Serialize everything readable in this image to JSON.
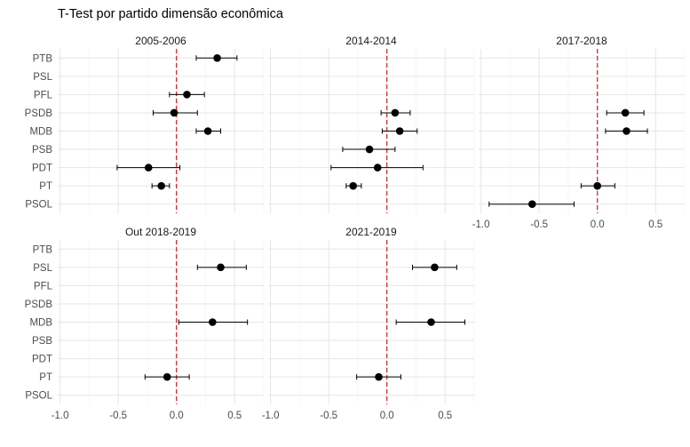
{
  "chart_data": {
    "type": "scatter",
    "title": "T-Test por partido dimensão econômica",
    "parties": [
      "PTB",
      "PSL",
      "PFL",
      "PSDB",
      "MDB",
      "PSB",
      "PDT",
      "PT",
      "PSOL"
    ],
    "x_ticks": [
      -1.0,
      -0.5,
      0.0,
      0.5
    ],
    "x_tick_labels": [
      "-1.0",
      "-0.5",
      "0.0",
      "0.5"
    ],
    "xlim": [
      -1.02,
      0.75
    ],
    "reference_line_x": 0,
    "reference_line_color": "#d7191c",
    "point_color": "#000000",
    "grid": true,
    "panels": [
      {
        "title": "2005-2006",
        "points": [
          {
            "party": "PTB",
            "estimate": 0.35,
            "lower": 0.17,
            "upper": 0.52
          },
          {
            "party": "PFL",
            "estimate": 0.09,
            "lower": -0.06,
            "upper": 0.24
          },
          {
            "party": "PSDB",
            "estimate": -0.02,
            "lower": -0.2,
            "upper": 0.18
          },
          {
            "party": "MDB",
            "estimate": 0.27,
            "lower": 0.17,
            "upper": 0.38
          },
          {
            "party": "PDT",
            "estimate": -0.24,
            "lower": -0.51,
            "upper": 0.03
          },
          {
            "party": "PT",
            "estimate": -0.13,
            "lower": -0.21,
            "upper": -0.06
          }
        ]
      },
      {
        "title": "2014-2014",
        "points": [
          {
            "party": "PSDB",
            "estimate": 0.07,
            "lower": -0.05,
            "upper": 0.2
          },
          {
            "party": "MDB",
            "estimate": 0.11,
            "lower": -0.04,
            "upper": 0.26
          },
          {
            "party": "PSB",
            "estimate": -0.15,
            "lower": -0.38,
            "upper": 0.07
          },
          {
            "party": "PDT",
            "estimate": -0.08,
            "lower": -0.48,
            "upper": 0.31
          },
          {
            "party": "PT",
            "estimate": -0.29,
            "lower": -0.35,
            "upper": -0.22
          }
        ]
      },
      {
        "title": "2017-2018",
        "points": [
          {
            "party": "PSDB",
            "estimate": 0.24,
            "lower": 0.08,
            "upper": 0.4
          },
          {
            "party": "MDB",
            "estimate": 0.25,
            "lower": 0.07,
            "upper": 0.43
          },
          {
            "party": "PT",
            "estimate": 0.0,
            "lower": -0.14,
            "upper": 0.15
          },
          {
            "party": "PSOL",
            "estimate": -0.56,
            "lower": -0.93,
            "upper": -0.2
          }
        ]
      },
      {
        "title": "Out 2018-2019",
        "points": [
          {
            "party": "PSL",
            "estimate": 0.38,
            "lower": 0.18,
            "upper": 0.6
          },
          {
            "party": "MDB",
            "estimate": 0.31,
            "lower": 0.02,
            "upper": 0.61
          },
          {
            "party": "PT",
            "estimate": -0.08,
            "lower": -0.27,
            "upper": 0.11
          }
        ]
      },
      {
        "title": "2021-2019",
        "points": [
          {
            "party": "PSL",
            "estimate": 0.41,
            "lower": 0.22,
            "upper": 0.6
          },
          {
            "party": "MDB",
            "estimate": 0.38,
            "lower": 0.08,
            "upper": 0.67
          },
          {
            "party": "PT",
            "estimate": -0.07,
            "lower": -0.26,
            "upper": 0.12
          }
        ]
      }
    ]
  }
}
